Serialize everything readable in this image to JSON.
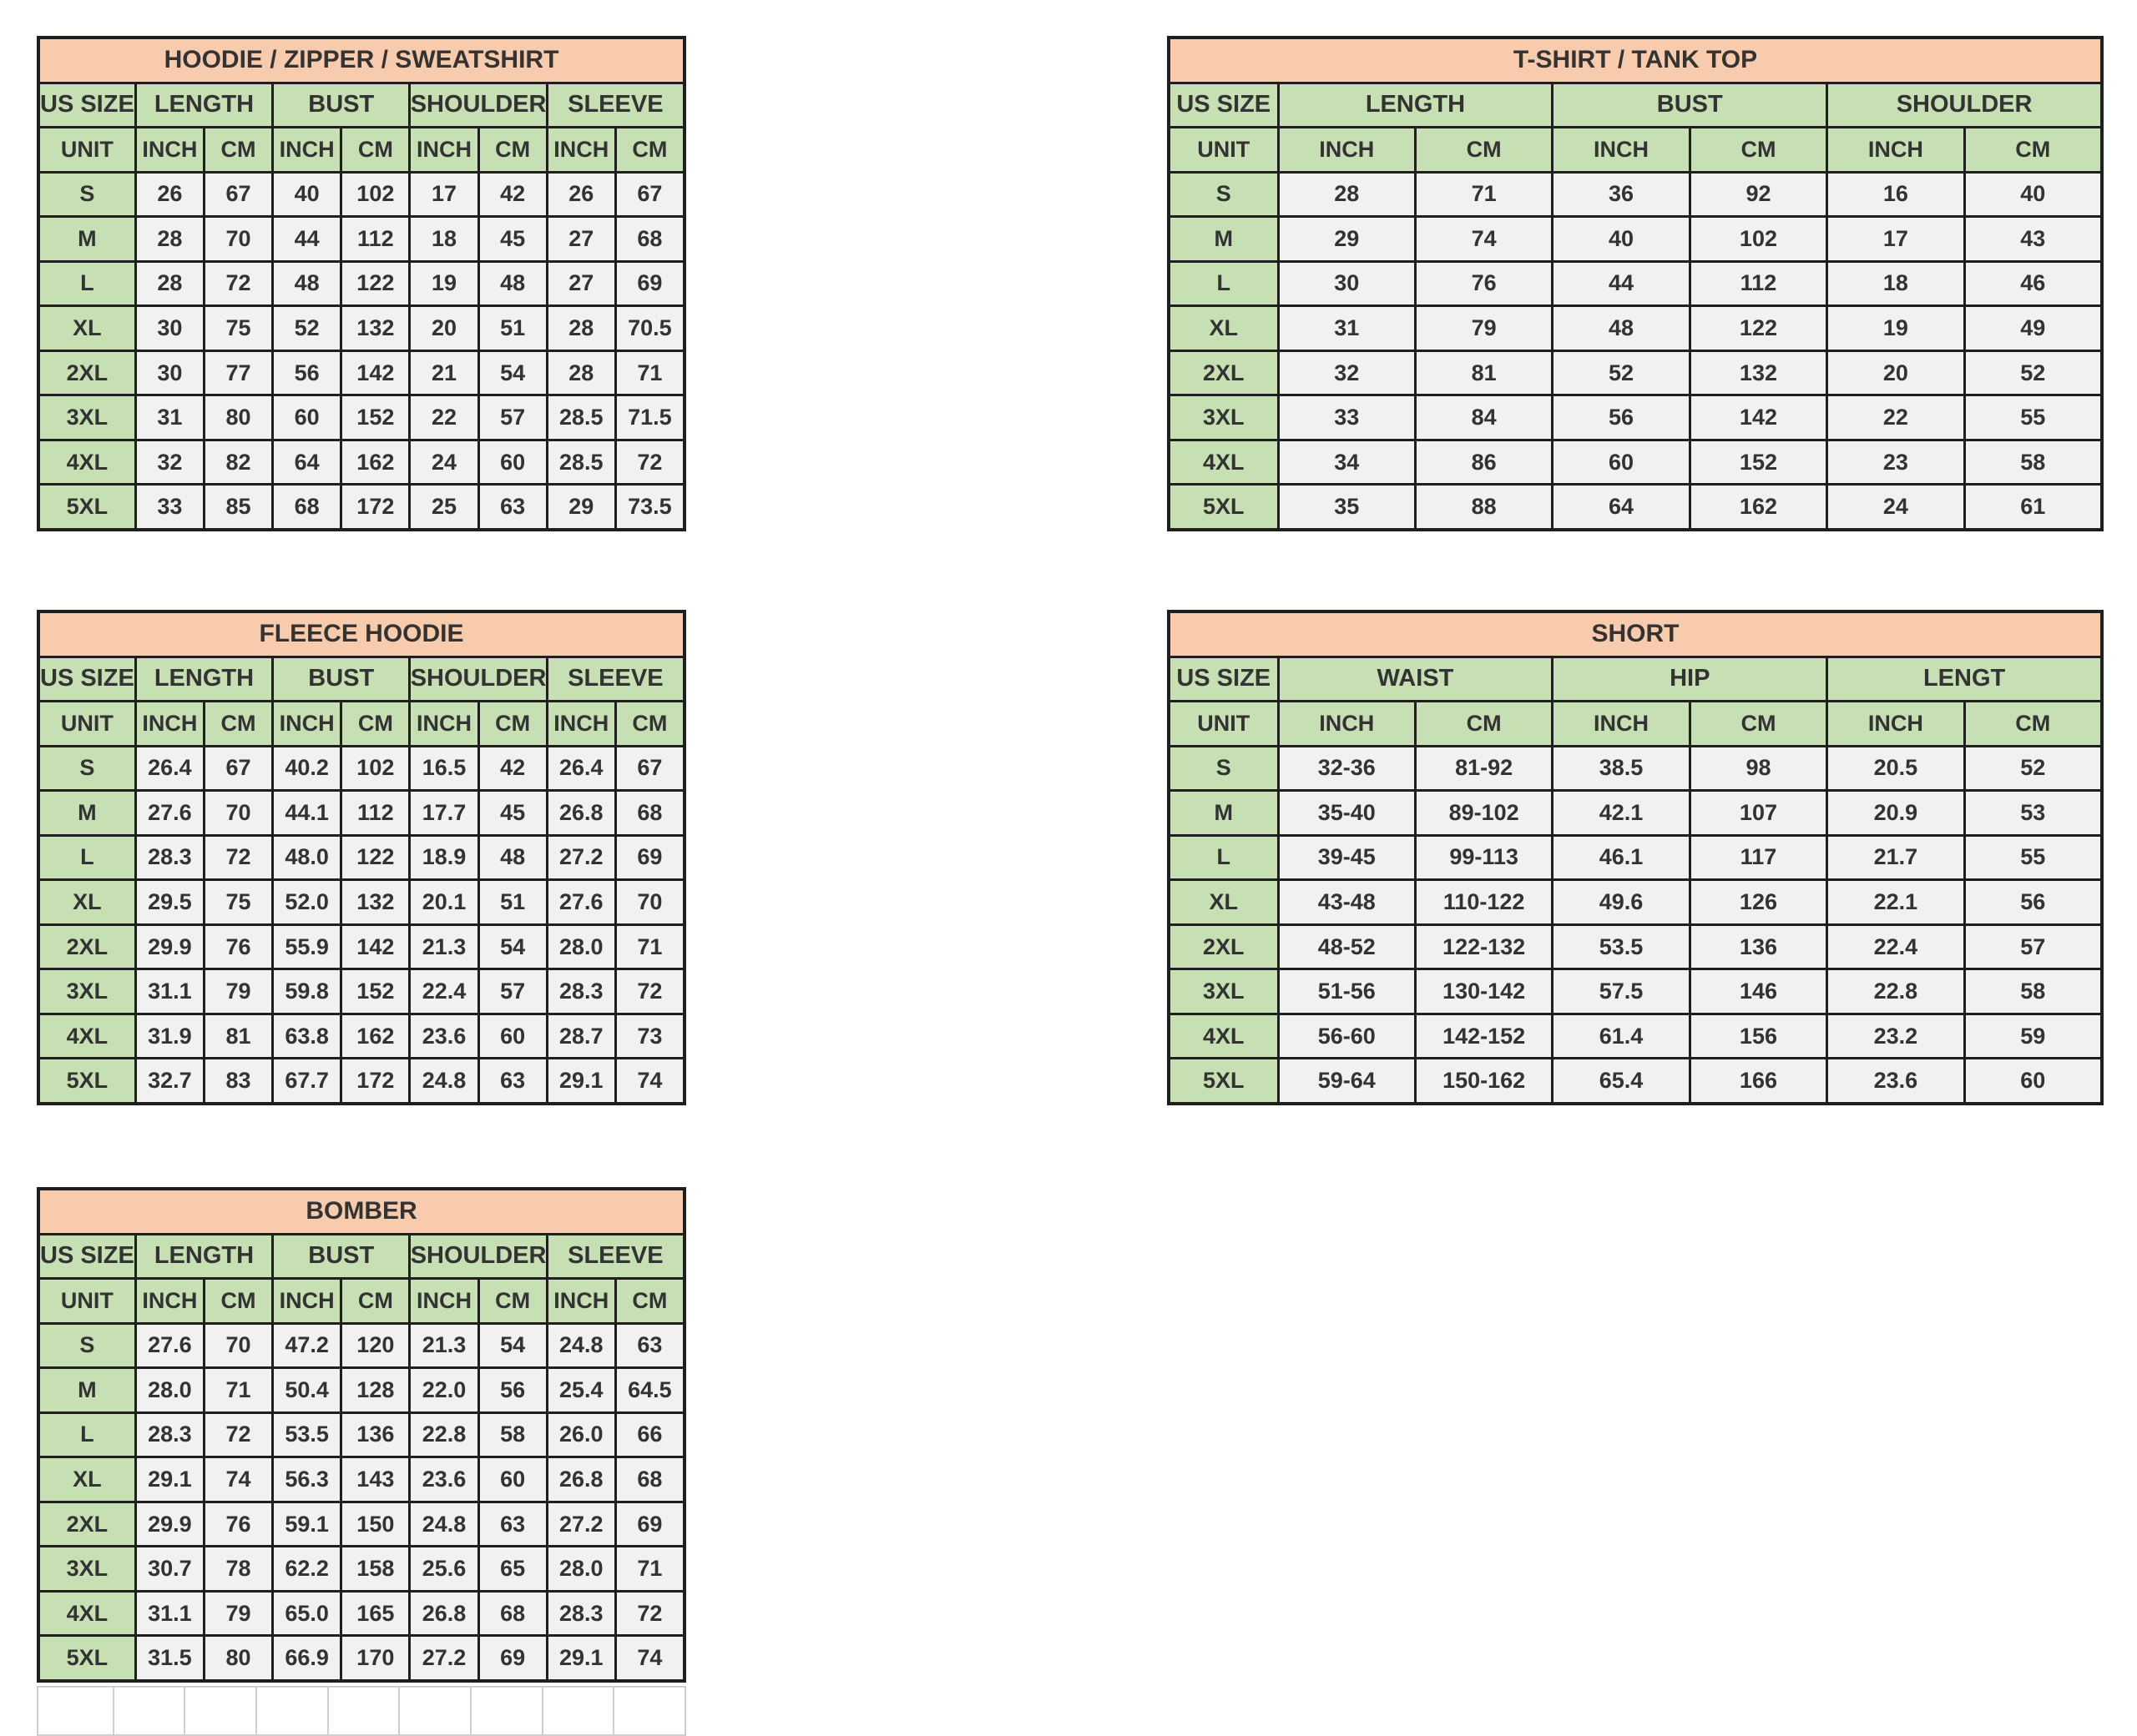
{
  "colors": {
    "title_bg": "#F8CBAD",
    "header_bg": "#C6E0B4",
    "cell_bg": "#F1F1F1",
    "border": "#1F1F1F",
    "text": "#333333",
    "ghost_grid": "#CFCFCF"
  },
  "tables": [
    {
      "id": "hoodie",
      "title": "HOODIE / ZIPPER / SWEATSHIRT",
      "size_label": "US SIZE",
      "unit_label": "UNIT",
      "groups": [
        "LENGTH",
        "BUST",
        "SHOULDER",
        "SLEEVE"
      ],
      "units": [
        "INCH",
        "CM",
        "INCH",
        "CM",
        "INCH",
        "CM",
        "INCH",
        "CM"
      ],
      "rows": [
        {
          "size": "S",
          "values": [
            "26",
            "67",
            "40",
            "102",
            "17",
            "42",
            "26",
            "67"
          ]
        },
        {
          "size": "M",
          "values": [
            "28",
            "70",
            "44",
            "112",
            "18",
            "45",
            "27",
            "68"
          ]
        },
        {
          "size": "L",
          "values": [
            "28",
            "72",
            "48",
            "122",
            "19",
            "48",
            "27",
            "69"
          ]
        },
        {
          "size": "XL",
          "values": [
            "30",
            "75",
            "52",
            "132",
            "20",
            "51",
            "28",
            "70.5"
          ]
        },
        {
          "size": "2XL",
          "values": [
            "30",
            "77",
            "56",
            "142",
            "21",
            "54",
            "28",
            "71"
          ]
        },
        {
          "size": "3XL",
          "values": [
            "31",
            "80",
            "60",
            "152",
            "22",
            "57",
            "28.5",
            "71.5"
          ]
        },
        {
          "size": "4XL",
          "values": [
            "32",
            "82",
            "64",
            "162",
            "24",
            "60",
            "28.5",
            "72"
          ]
        },
        {
          "size": "5XL",
          "values": [
            "33",
            "85",
            "68",
            "172",
            "25",
            "63",
            "29",
            "73.5"
          ]
        }
      ]
    },
    {
      "id": "tshirt",
      "title": "T-SHIRT / TANK TOP",
      "size_label": "US SIZE",
      "unit_label": "UNIT",
      "groups": [
        "LENGTH",
        "BUST",
        "SHOULDER"
      ],
      "units": [
        "INCH",
        "CM",
        "INCH",
        "CM",
        "INCH",
        "CM"
      ],
      "rows": [
        {
          "size": "S",
          "values": [
            "28",
            "71",
            "36",
            "92",
            "16",
            "40"
          ]
        },
        {
          "size": "M",
          "values": [
            "29",
            "74",
            "40",
            "102",
            "17",
            "43"
          ]
        },
        {
          "size": "L",
          "values": [
            "30",
            "76",
            "44",
            "112",
            "18",
            "46"
          ]
        },
        {
          "size": "XL",
          "values": [
            "31",
            "79",
            "48",
            "122",
            "19",
            "49"
          ]
        },
        {
          "size": "2XL",
          "values": [
            "32",
            "81",
            "52",
            "132",
            "20",
            "52"
          ]
        },
        {
          "size": "3XL",
          "values": [
            "33",
            "84",
            "56",
            "142",
            "22",
            "55"
          ]
        },
        {
          "size": "4XL",
          "values": [
            "34",
            "86",
            "60",
            "152",
            "23",
            "58"
          ]
        },
        {
          "size": "5XL",
          "values": [
            "35",
            "88",
            "64",
            "162",
            "24",
            "61"
          ]
        }
      ]
    },
    {
      "id": "fleece",
      "title": "FLEECE HOODIE",
      "size_label": "US SIZE",
      "unit_label": "UNIT",
      "groups": [
        "LENGTH",
        "BUST",
        "SHOULDER",
        "SLEEVE"
      ],
      "units": [
        "INCH",
        "CM",
        "INCH",
        "CM",
        "INCH",
        "CM",
        "INCH",
        "CM"
      ],
      "rows": [
        {
          "size": "S",
          "values": [
            "26.4",
            "67",
            "40.2",
            "102",
            "16.5",
            "42",
            "26.4",
            "67"
          ]
        },
        {
          "size": "M",
          "values": [
            "27.6",
            "70",
            "44.1",
            "112",
            "17.7",
            "45",
            "26.8",
            "68"
          ]
        },
        {
          "size": "L",
          "values": [
            "28.3",
            "72",
            "48.0",
            "122",
            "18.9",
            "48",
            "27.2",
            "69"
          ]
        },
        {
          "size": "XL",
          "values": [
            "29.5",
            "75",
            "52.0",
            "132",
            "20.1",
            "51",
            "27.6",
            "70"
          ]
        },
        {
          "size": "2XL",
          "values": [
            "29.9",
            "76",
            "55.9",
            "142",
            "21.3",
            "54",
            "28.0",
            "71"
          ]
        },
        {
          "size": "3XL",
          "values": [
            "31.1",
            "79",
            "59.8",
            "152",
            "22.4",
            "57",
            "28.3",
            "72"
          ]
        },
        {
          "size": "4XL",
          "values": [
            "31.9",
            "81",
            "63.8",
            "162",
            "23.6",
            "60",
            "28.7",
            "73"
          ]
        },
        {
          "size": "5XL",
          "values": [
            "32.7",
            "83",
            "67.7",
            "172",
            "24.8",
            "63",
            "29.1",
            "74"
          ]
        }
      ]
    },
    {
      "id": "short",
      "title": "SHORT",
      "size_label": "US SIZE",
      "unit_label": "UNIT",
      "groups": [
        "WAIST",
        "HIP",
        "LENGT"
      ],
      "units": [
        "INCH",
        "CM",
        "INCH",
        "CM",
        "INCH",
        "CM"
      ],
      "rows": [
        {
          "size": "S",
          "values": [
            "32-36",
            "81-92",
            "38.5",
            "98",
            "20.5",
            "52"
          ]
        },
        {
          "size": "M",
          "values": [
            "35-40",
            "89-102",
            "42.1",
            "107",
            "20.9",
            "53"
          ]
        },
        {
          "size": "L",
          "values": [
            "39-45",
            "99-113",
            "46.1",
            "117",
            "21.7",
            "55"
          ]
        },
        {
          "size": "XL",
          "values": [
            "43-48",
            "110-122",
            "49.6",
            "126",
            "22.1",
            "56"
          ]
        },
        {
          "size": "2XL",
          "values": [
            "48-52",
            "122-132",
            "53.5",
            "136",
            "22.4",
            "57"
          ]
        },
        {
          "size": "3XL",
          "values": [
            "51-56",
            "130-142",
            "57.5",
            "146",
            "22.8",
            "58"
          ]
        },
        {
          "size": "4XL",
          "values": [
            "56-60",
            "142-152",
            "61.4",
            "156",
            "23.2",
            "59"
          ]
        },
        {
          "size": "5XL",
          "values": [
            "59-64",
            "150-162",
            "65.4",
            "166",
            "23.6",
            "60"
          ]
        }
      ]
    },
    {
      "id": "bomber",
      "title": "BOMBER",
      "size_label": "US SIZE",
      "unit_label": "UNIT",
      "groups": [
        "LENGTH",
        "BUST",
        "SHOULDER",
        "SLEEVE"
      ],
      "units": [
        "INCH",
        "CM",
        "INCH",
        "CM",
        "INCH",
        "CM",
        "INCH",
        "CM"
      ],
      "rows": [
        {
          "size": "S",
          "values": [
            "27.6",
            "70",
            "47.2",
            "120",
            "21.3",
            "54",
            "24.8",
            "63"
          ]
        },
        {
          "size": "M",
          "values": [
            "28.0",
            "71",
            "50.4",
            "128",
            "22.0",
            "56",
            "25.4",
            "64.5"
          ]
        },
        {
          "size": "L",
          "values": [
            "28.3",
            "72",
            "53.5",
            "136",
            "22.8",
            "58",
            "26.0",
            "66"
          ]
        },
        {
          "size": "XL",
          "values": [
            "29.1",
            "74",
            "56.3",
            "143",
            "23.6",
            "60",
            "26.8",
            "68"
          ]
        },
        {
          "size": "2XL",
          "values": [
            "29.9",
            "76",
            "59.1",
            "150",
            "24.8",
            "63",
            "27.2",
            "69"
          ]
        },
        {
          "size": "3XL",
          "values": [
            "30.7",
            "78",
            "62.2",
            "158",
            "25.6",
            "65",
            "28.0",
            "71"
          ]
        },
        {
          "size": "4XL",
          "values": [
            "31.1",
            "79",
            "65.0",
            "165",
            "26.8",
            "68",
            "28.3",
            "72"
          ]
        },
        {
          "size": "5XL",
          "values": [
            "31.5",
            "80",
            "66.9",
            "170",
            "27.2",
            "69",
            "29.1",
            "74"
          ]
        }
      ]
    }
  ],
  "empty_row": {
    "columns": 9
  }
}
